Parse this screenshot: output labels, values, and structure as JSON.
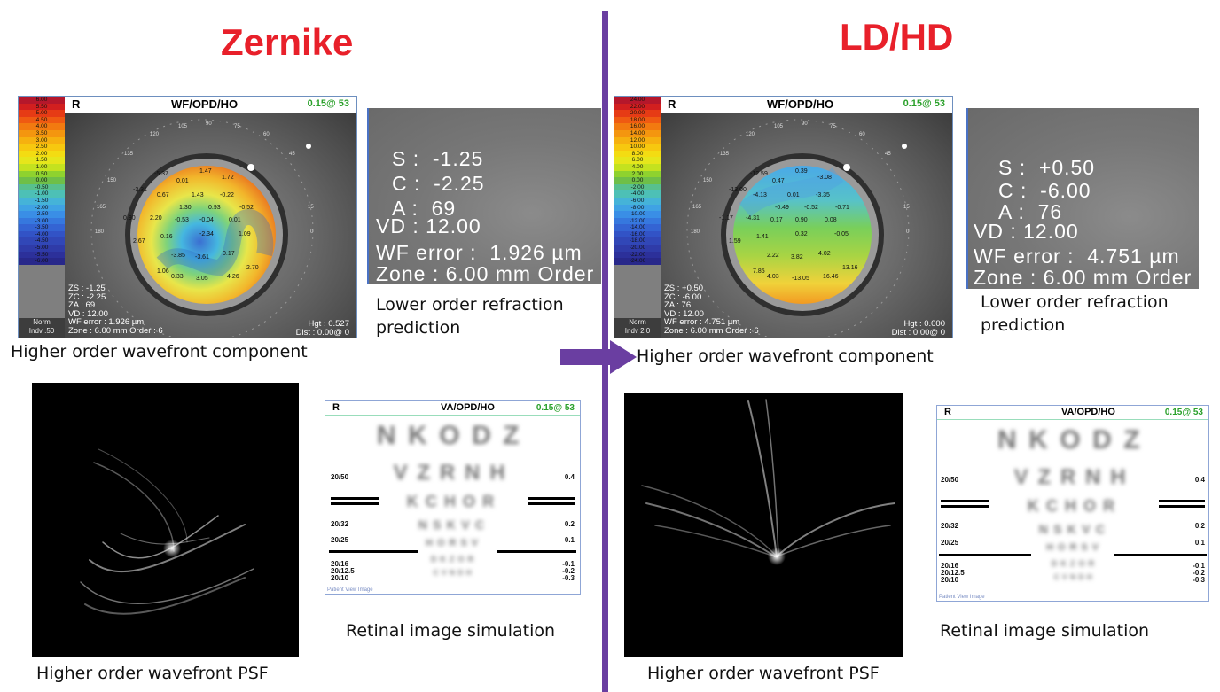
{
  "divider_color": "#6a3ea1",
  "arrow_color": "#6a3ea1",
  "left": {
    "title": "Zernike",
    "wavefront": {
      "eye_label": "R",
      "map_title": "WF/OPD/HO",
      "scale_setting": "0.15@ 53",
      "scale_labels": [
        "6.00",
        "5.50",
        "5.00",
        "4.50",
        "4.00",
        "3.50",
        "3.00",
        "2.50",
        "2.00",
        "1.50",
        "1.00",
        "0.50",
        "0.00",
        "-0.50",
        "-1.00",
        "-1.50",
        "-2.00",
        "-2.50",
        "-3.00",
        "-3.50",
        "-4.00",
        "-4.50",
        "-5.00",
        "-5.50",
        "-6.00"
      ],
      "norm_line1": "Norm",
      "norm_line2": "Indv .50",
      "axis_labels": [
        "120",
        "105",
        "90",
        "75",
        "60",
        "135",
        "45",
        "150",
        "165",
        "15",
        "180",
        "0"
      ],
      "map_values": [
        "-5.37",
        "1.47",
        "1.72",
        "0.01",
        "-3.31",
        "0.67",
        "1.43",
        "-0.22",
        "1.30",
        "0.93",
        "-0.52",
        "0.90",
        "2.20",
        "-0.53",
        "-0.04",
        "0.01",
        "2.67",
        "0.16",
        "-2.34",
        "1.09",
        "-3.85",
        "-3.61",
        "0.17",
        "1.06",
        "0.33",
        "3.05",
        "4.26",
        "2.70"
      ],
      "zs": "ZS : -1.25",
      "zc": "ZC : -2.25",
      "za": "ZA : 69",
      "vd": "VD : 12.00",
      "wf_error": "WF error : 1.926 µm",
      "zone": "Zone : 6.00 mm Order : 6",
      "hgt": "Hgt : 0.527",
      "dist": "Dist : 0.00@ 0"
    },
    "wavefront_caption": "Higher order wavefront component",
    "refraction": {
      "s": "S :  -1.25",
      "c": "C :  -2.25",
      "a": "A :  69",
      "vd": "VD : 12.00",
      "wf": "WF error :  1.926 µm",
      "zone": "Zone : 6.00 mm Order"
    },
    "refraction_caption_1": "Lower order refraction",
    "refraction_caption_2": "prediction",
    "psf_caption": "Higher order wavefront PSF",
    "va": {
      "eye_label": "R",
      "title": "VA/OPD/HO",
      "scale_setting": "0.15@ 53",
      "left_labels": [
        "20/50",
        "20/32",
        "20/25",
        "20/16",
        "20/12.5",
        "20/10"
      ],
      "right_labels": [
        "0.4",
        "0.2",
        "0.1",
        "-0.1",
        "-0.2",
        "-0.3"
      ],
      "patient_view": "Patient View Image"
    },
    "va_caption": "Retinal image simulation"
  },
  "right": {
    "title": "LD/HD",
    "wavefront": {
      "eye_label": "R",
      "map_title": "WF/OPD/HO",
      "scale_setting": "0.15@ 53",
      "scale_labels": [
        "24.00",
        "22.00",
        "20.00",
        "18.00",
        "16.00",
        "14.00",
        "12.00",
        "10.00",
        "8.00",
        "6.00",
        "4.00",
        "2.00",
        "0.00",
        "-2.00",
        "-4.00",
        "-6.00",
        "-8.00",
        "-10.00",
        "-12.00",
        "-14.00",
        "-16.00",
        "-18.00",
        "-20.00",
        "-22.00",
        "-24.00"
      ],
      "norm_line1": "Norm",
      "norm_line2": "Indv 2.0",
      "axis_labels": [
        "120",
        "105",
        "90",
        "75",
        "60",
        "135",
        "45",
        "150",
        "165",
        "15",
        "180",
        "0"
      ],
      "map_values": [
        "-12.59",
        "0.39",
        "-3.08",
        "0.47",
        "-13.00",
        "-4.13",
        "0.01",
        "-3.35",
        "-0.49",
        "-0.52",
        "-0.71",
        "-1.17",
        "-4.31",
        "0.17",
        "0.90",
        "0.08",
        "1.59",
        "1.41",
        "0.32",
        "-0.05",
        "2.22",
        "3.82",
        "4.02",
        "7.85",
        "4.03",
        "-13.05",
        "16.46",
        "13.16"
      ],
      "zs": "ZS : +0.50",
      "zc": "ZC : -6.00",
      "za": "ZA : 76",
      "vd": "VD : 12.00",
      "wf_error": "WF error : 4.751 µm",
      "zone": "Zone : 6.00 mm Order : 6",
      "hgt": "Hgt : 0.000",
      "dist": "Dist : 0.00@ 0"
    },
    "wavefront_caption": "Higher order wavefront component",
    "refraction": {
      "s": "S :  +0.50",
      "c": "C :  -6.00",
      "a": "A :  76",
      "vd": "VD : 12.00",
      "wf": "WF error :  4.751 µm",
      "zone": "Zone : 6.00 mm Order"
    },
    "refraction_caption_1": "Lower order refraction",
    "refraction_caption_2": "prediction",
    "psf_caption": "Higher order wavefront PSF",
    "va": {
      "eye_label": "R",
      "title": "VA/OPD/HO",
      "scale_setting": "0.15@ 53",
      "left_labels": [
        "20/50",
        "20/32",
        "20/25",
        "20/16",
        "20/12.5",
        "20/10"
      ],
      "right_labels": [
        "0.4",
        "0.2",
        "0.1",
        "-0.1",
        "-0.2",
        "-0.3"
      ],
      "patient_view": "Patient View Image"
    },
    "va_caption": "Retinal image simulation"
  },
  "chart_letters": [
    "NKODZ",
    "VZRNH",
    "KCHOR",
    "NSKVC",
    "HORSV",
    "DKZOR",
    "CVNDH"
  ]
}
